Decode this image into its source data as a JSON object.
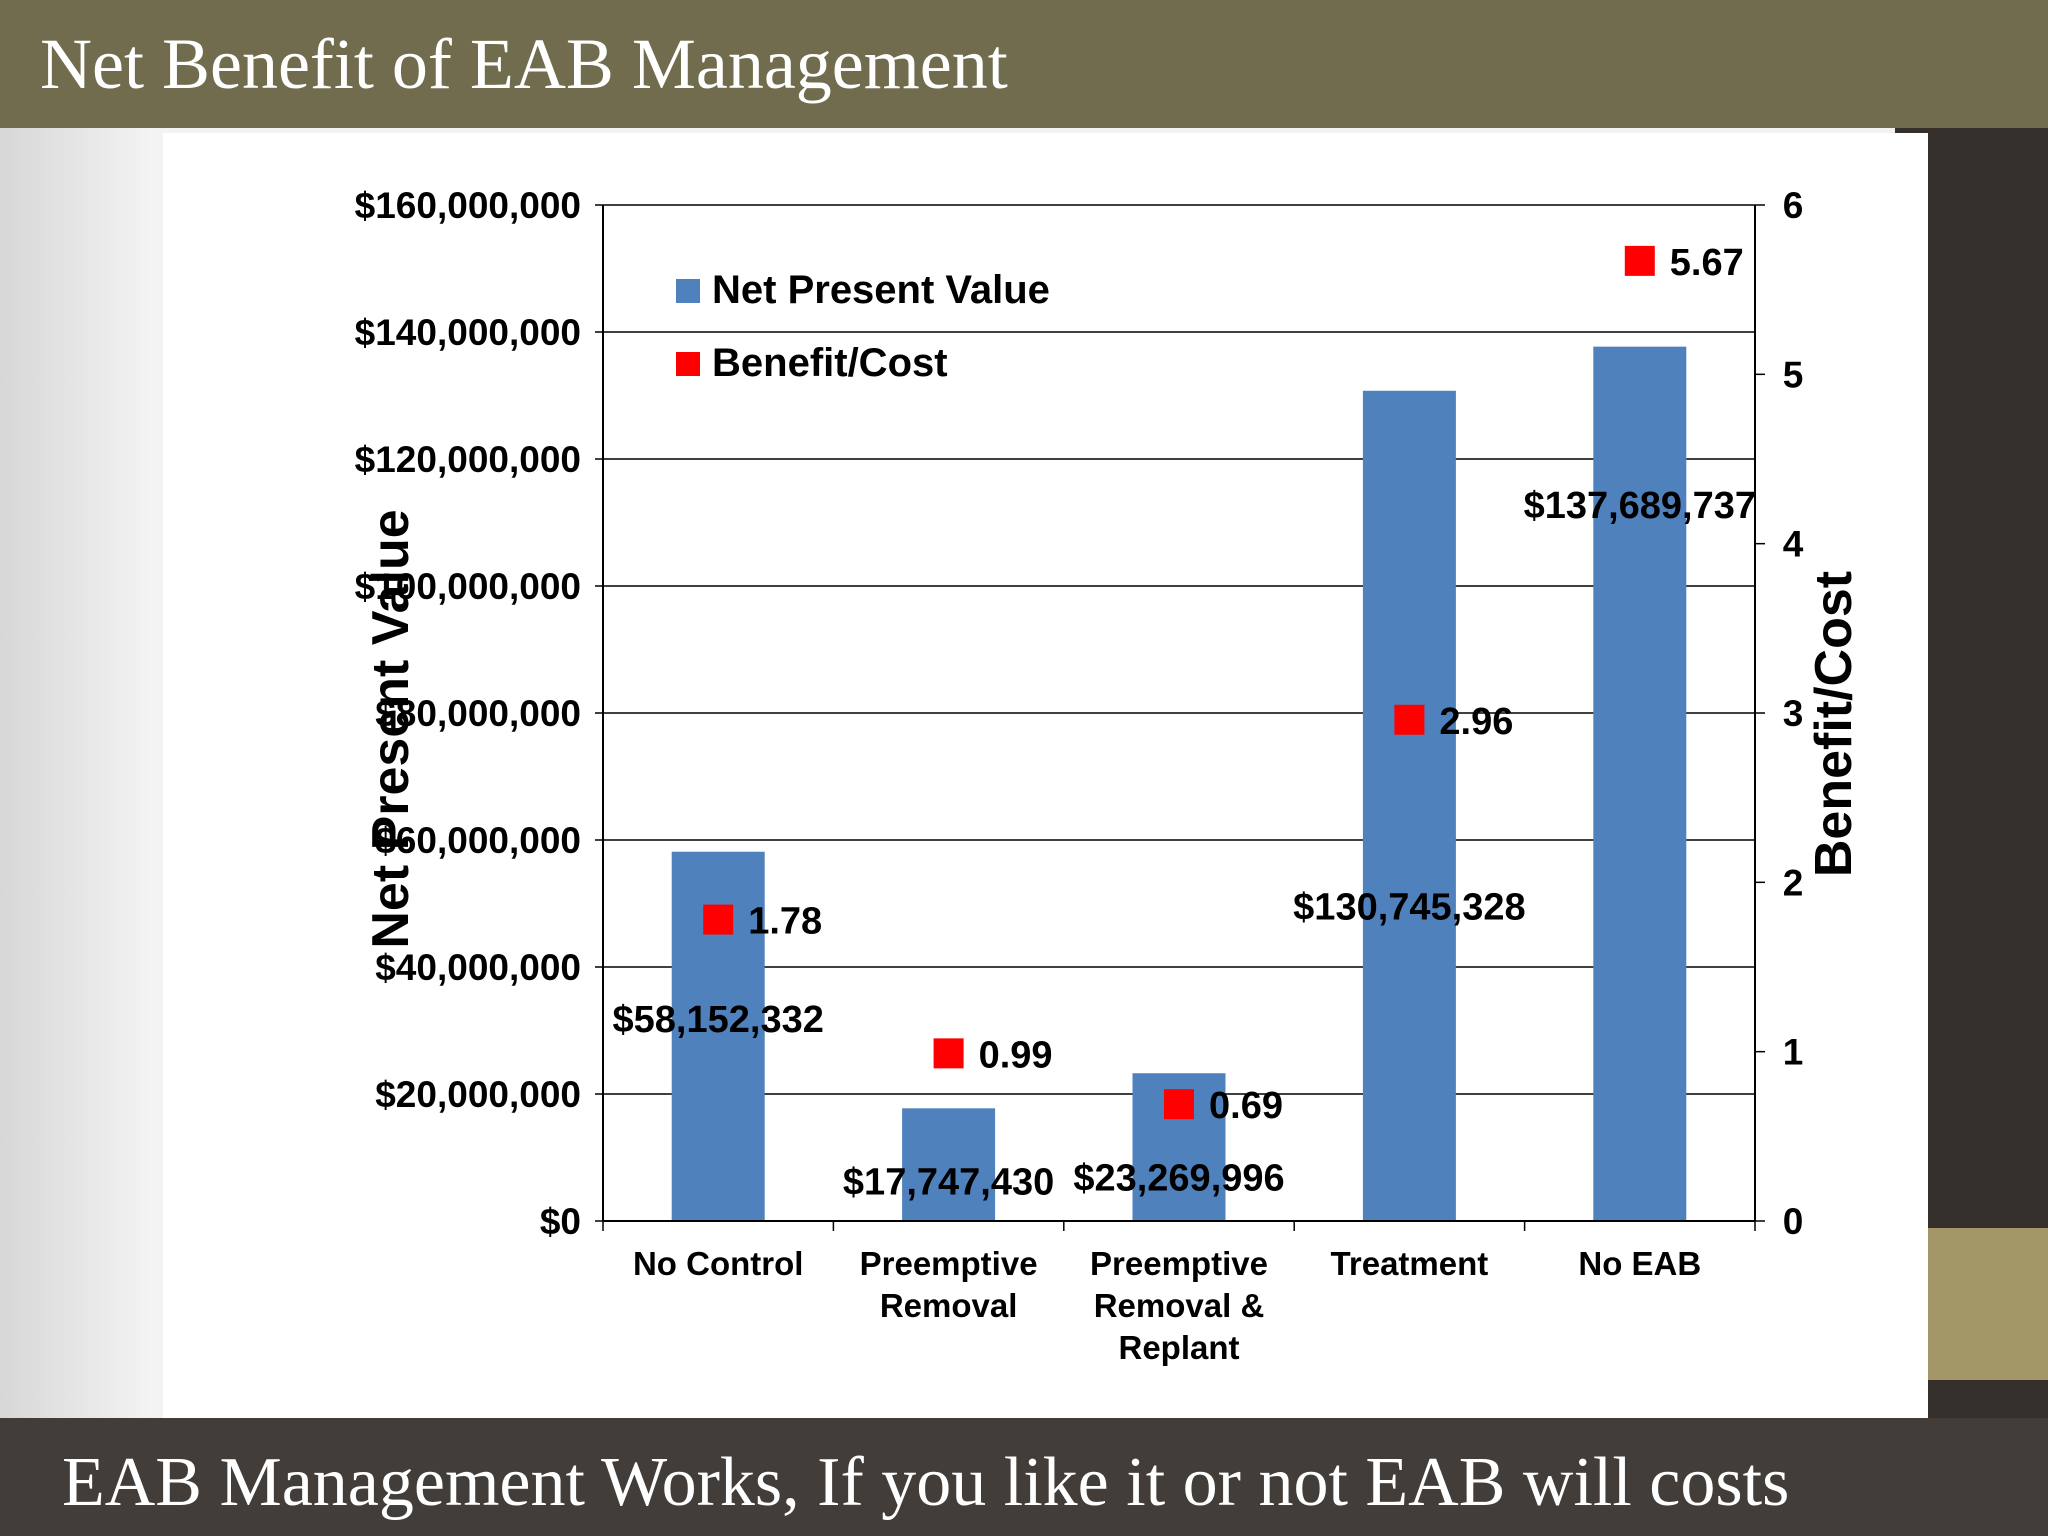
{
  "slide": {
    "title": "Net Benefit of EAB Management",
    "subtitle": "EAB Management Works, If you like it or not EAB will costs"
  },
  "colors": {
    "header_bar": "#706c4d",
    "footer_bar": "#423d38",
    "bar_fill": "#4f81bd",
    "marker_fill": "#ff0000"
  },
  "chart_data": {
    "type": "bar",
    "categories": [
      [
        "No Control"
      ],
      [
        "Preemptive",
        "Removal"
      ],
      [
        "Preemptive",
        "Removal &",
        "Replant"
      ],
      [
        "Treatment"
      ],
      [
        "No EAB"
      ]
    ],
    "series": [
      {
        "name": "Net Present Value",
        "kind": "bar",
        "axis": "left",
        "values": [
          58152332,
          17747430,
          23269996,
          130745328,
          137689737
        ],
        "labels": [
          "$58,152,332",
          "$17,747,430",
          "$23,269,996",
          "$130,745,328",
          "$137,689,737"
        ]
      },
      {
        "name": "Benefit/Cost",
        "kind": "marker",
        "axis": "right",
        "values": [
          1.78,
          0.99,
          0.69,
          2.96,
          5.67
        ],
        "labels": [
          "1.78",
          "0.99",
          "0.69",
          "2.96",
          "5.67"
        ]
      }
    ],
    "ylabel": "Net Present Value",
    "y2label": "Benefit/Cost",
    "ylim": [
      0,
      160000000
    ],
    "y2lim": [
      0,
      6
    ],
    "yticks": [
      "$0",
      "$20,000,000",
      "$40,000,000",
      "$60,000,000",
      "$80,000,000",
      "$100,000,000",
      "$120,000,000",
      "$140,000,000",
      "$160,000,000"
    ],
    "y2ticks": [
      "0",
      "1",
      "2",
      "3",
      "4",
      "5",
      "6"
    ],
    "grid": true,
    "legend": "top-left"
  }
}
